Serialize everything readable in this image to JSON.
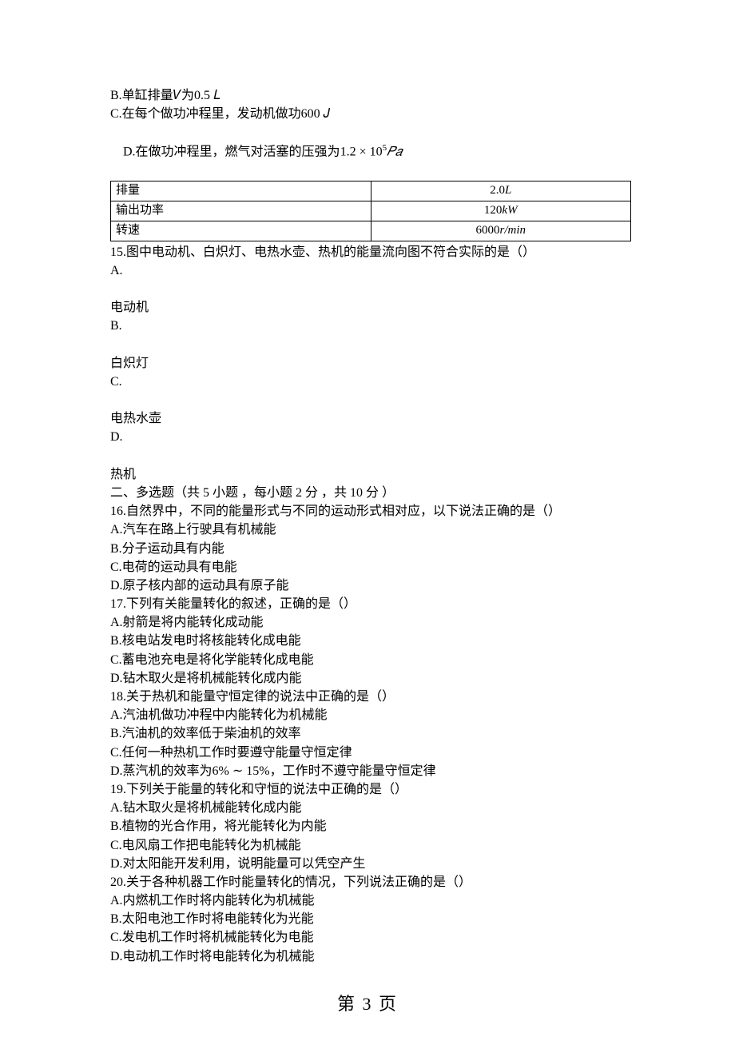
{
  "opts_pre": {
    "b": "B.单缸排量𝑉为0.5 𝐿",
    "c": "C.在每个做功冲程里，发动机做功600 𝐽",
    "d_pre": "D.在做功冲程里，燃气对活塞的压强为",
    "d_val": "1.2 × 10",
    "d_exp": "5",
    "d_unit": "𝑃𝑎"
  },
  "table": {
    "rows": [
      {
        "label": "排量",
        "num": "2.0",
        "unit": "L"
      },
      {
        "label": "输出功率",
        "num": "120",
        "unit": "kW"
      },
      {
        "label": "转速",
        "num": "6000",
        "unit": "r/min"
      }
    ]
  },
  "q15": {
    "stem": "15.图中电动机、白炽灯、电热水壶、热机的能量流向图不符合实际的是（）",
    "A": "A.",
    "A_cap": "电动机",
    "B": "B.",
    "B_cap": "白炽灯",
    "C": "C.",
    "C_cap": "电热水壶",
    "D": "D.",
    "D_cap": "热机"
  },
  "section2": "二、多选题（共 5 小题 ，每小题 2 分 ，共 10 分 ）",
  "q16": {
    "stem": "16.自然界中，不同的能量形式与不同的运动形式相对应，以下说法正确的是（）",
    "A": "A.汽车在路上行驶具有机械能",
    "B": "B.分子运动具有内能",
    "C": "C.电荷的运动具有电能",
    "D": "D.原子核内部的运动具有原子能"
  },
  "q17": {
    "stem": "17.下列有关能量转化的叙述，正确的是（）",
    "A": "A.射箭是将内能转化成动能",
    "B": "B.核电站发电时将核能转化成电能",
    "C": "C.蓄电池充电是将化学能转化成电能",
    "D": "D.钻木取火是将机械能转化成内能"
  },
  "q18": {
    "stem": "18.关于热机和能量守恒定律的说法中正确的是（）",
    "A": "A.汽油机做功冲程中内能转化为机械能",
    "B": "B.汽油机的效率低于柴油机的效率",
    "C": "C.任何一种热机工作时要遵守能量守恒定律",
    "D": "D.蒸汽机的效率为6% ∼ 15%，工作时不遵守能量守恒定律"
  },
  "q19": {
    "stem": "19.下列关于能量的转化和守恒的说法中正确的是（）",
    "A": "A.钻木取火是将机械能转化成内能",
    "B": "B.植物的光合作用，将光能转化为内能",
    "C": "C.电风扇工作把电能转化为机械能",
    "D": "D.对太阳能开发利用，说明能量可以凭空产生"
  },
  "q20": {
    "stem": "20.关于各种机器工作时能量转化的情况，下列说法正确的是（）",
    "A": "A.内燃机工作时将内能转化为机械能",
    "B": "B.太阳电池工作时将电能转化为光能",
    "C": "C.发电机工作时将机械能转化为电能",
    "D": "D.电动机工作时将电能转化为机械能"
  },
  "pagenum": "第 3 页"
}
